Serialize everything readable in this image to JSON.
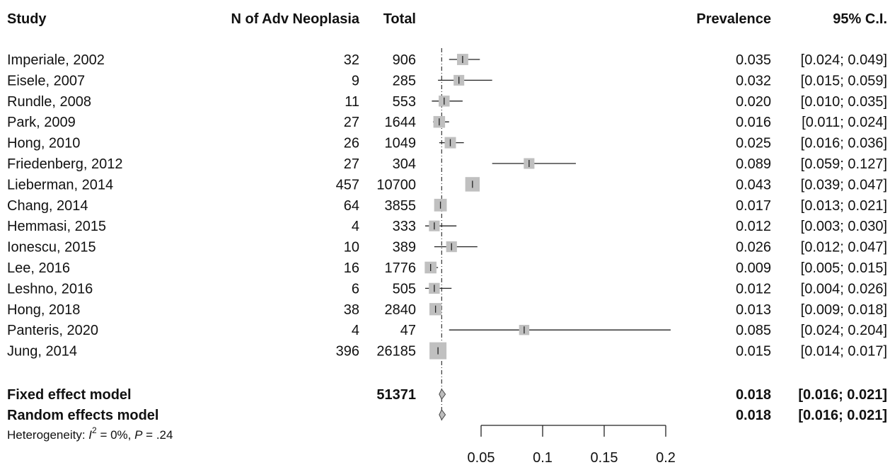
{
  "chart_data": {
    "type": "forest",
    "columns": {
      "study": "Study",
      "events": "N of Adv Neoplasia",
      "total": "Total",
      "estimate": "Prevalence",
      "ci": "95% C.I."
    },
    "studies": [
      {
        "name": "Imperiale, 2002",
        "events": "32",
        "total": "906",
        "estimate_text": "0.035",
        "ci_text": "[0.024; 0.049]",
        "est": 0.035,
        "lo": 0.024,
        "hi": 0.049
      },
      {
        "name": "Eisele, 2007",
        "events": "9",
        "total": "285",
        "estimate_text": "0.032",
        "ci_text": "[0.015; 0.059]",
        "est": 0.032,
        "lo": 0.015,
        "hi": 0.059
      },
      {
        "name": "Rundle, 2008",
        "events": "11",
        "total": "553",
        "estimate_text": "0.020",
        "ci_text": "[0.010; 0.035]",
        "est": 0.02,
        "lo": 0.01,
        "hi": 0.035
      },
      {
        "name": "Park, 2009",
        "events": "27",
        "total": "1644",
        "estimate_text": "0.016",
        "ci_text": "[0.011; 0.024]",
        "est": 0.016,
        "lo": 0.011,
        "hi": 0.024
      },
      {
        "name": "Hong, 2010",
        "events": "26",
        "total": "1049",
        "estimate_text": "0.025",
        "ci_text": "[0.016; 0.036]",
        "est": 0.025,
        "lo": 0.016,
        "hi": 0.036
      },
      {
        "name": "Friedenberg, 2012",
        "events": "27",
        "total": "304",
        "estimate_text": "0.089",
        "ci_text": "[0.059; 0.127]",
        "est": 0.089,
        "lo": 0.059,
        "hi": 0.127
      },
      {
        "name": "Lieberman, 2014",
        "events": "457",
        "total": "10700",
        "estimate_text": "0.043",
        "ci_text": "[0.039; 0.047]",
        "est": 0.043,
        "lo": 0.039,
        "hi": 0.047
      },
      {
        "name": "Chang, 2014",
        "events": "64",
        "total": "3855",
        "estimate_text": "0.017",
        "ci_text": "[0.013; 0.021]",
        "est": 0.017,
        "lo": 0.013,
        "hi": 0.021
      },
      {
        "name": "Hemmasi, 2015",
        "events": "4",
        "total": "333",
        "estimate_text": "0.012",
        "ci_text": "[0.003; 0.030]",
        "est": 0.012,
        "lo": 0.003,
        "hi": 0.03
      },
      {
        "name": "Ionescu, 2015",
        "events": "10",
        "total": "389",
        "estimate_text": "0.026",
        "ci_text": "[0.012; 0.047]",
        "est": 0.026,
        "lo": 0.012,
        "hi": 0.047
      },
      {
        "name": "Lee, 2016",
        "events": "16",
        "total": "1776",
        "estimate_text": "0.009",
        "ci_text": "[0.005; 0.015]",
        "est": 0.009,
        "lo": 0.005,
        "hi": 0.015
      },
      {
        "name": "Leshno, 2016",
        "events": "6",
        "total": "505",
        "estimate_text": "0.012",
        "ci_text": "[0.004; 0.026]",
        "est": 0.012,
        "lo": 0.004,
        "hi": 0.026
      },
      {
        "name": "Hong, 2018",
        "events": "38",
        "total": "2840",
        "estimate_text": "0.013",
        "ci_text": "[0.009; 0.018]",
        "est": 0.013,
        "lo": 0.009,
        "hi": 0.018
      },
      {
        "name": "Panteris, 2020",
        "events": "4",
        "total": "47",
        "estimate_text": "0.085",
        "ci_text": "[0.024; 0.204]",
        "est": 0.085,
        "lo": 0.024,
        "hi": 0.204
      },
      {
        "name": "Jung, 2014",
        "events": "396",
        "total": "26185",
        "estimate_text": "0.015",
        "ci_text": "[0.014; 0.017]",
        "est": 0.015,
        "lo": 0.014,
        "hi": 0.017
      }
    ],
    "pooled": [
      {
        "name": "Fixed effect model",
        "total": "51371",
        "estimate_text": "0.018",
        "ci_text": "[0.016; 0.021]",
        "est": 0.018,
        "lo": 0.016,
        "hi": 0.021
      },
      {
        "name": "Random effects model",
        "total": "",
        "estimate_text": "0.018",
        "ci_text": "[0.016; 0.021]",
        "est": 0.018,
        "lo": 0.016,
        "hi": 0.021
      }
    ],
    "heterogeneity": {
      "prefix": "Heterogeneity: ",
      "i_letter": "I",
      "i_sup": "2",
      "i_rest": " = 0%, ",
      "p_letter": "P",
      "p_rest": " = .24"
    },
    "x_axis": {
      "ticks": [
        0.05,
        0.1,
        0.15,
        0.2
      ],
      "tick_labels": [
        "0.05",
        "0.1",
        "0.15",
        "0.2"
      ],
      "range": [
        0.05,
        0.2
      ]
    },
    "reference_line": 0.018,
    "colors": {
      "box": "#c0c0c0",
      "line": "#222222",
      "diamond": "#bdbdbd"
    }
  }
}
